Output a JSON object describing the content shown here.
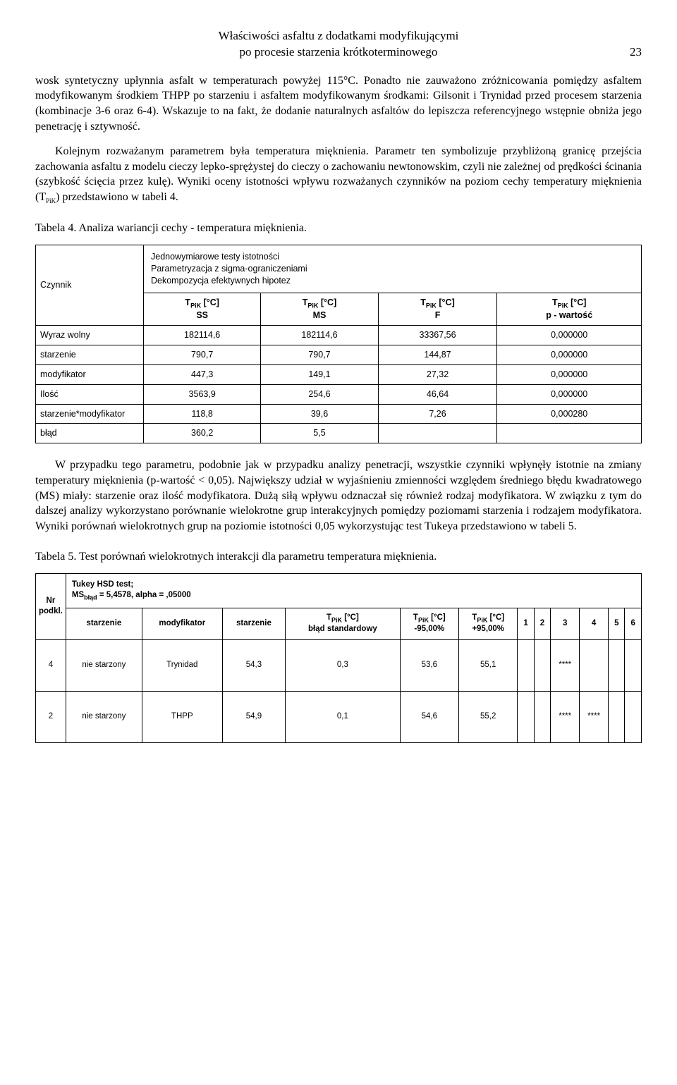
{
  "header": {
    "title_line1": "Właściwości asfaltu z dodatkami modyfikującymi",
    "title_line2": "po procesie starzenia krótkoterminowego",
    "page_number": "23"
  },
  "para1": "wosk syntetyczny upłynnia asfalt w temperaturach powyżej 115°C. Ponadto nie zauważono zróżnicowania pomiędzy asfaltem modyfikowanym środkiem THPP po starzeniu i asfaltem modyfikowanym środkami: Gilsonit i Trynidad przed procesem starzenia (kombinacje 3-6 oraz 6-4). Wskazuje to na fakt, że dodanie naturalnych asfaltów do lepiszcza referencyjnego wstępnie obniża jego penetrację i sztywność.",
  "para2_a": "Kolejnym rozważanym parametrem była temperatura mięknienia. Parametr ten symbolizuje przybliżoną granicę przejścia zachowania asfaltu z modelu cieczy lepko-sprężystej do cieczy o zachowaniu newtonowskim, czyli nie zależnej od prędkości ścinania (szybkość ścięcia przez kulę). Wyniki oceny istotności wpływu rozważanych czynników na poziom cechy temperatury mięknienia (T",
  "para2_sub": "PiK",
  "para2_b": ") przedstawiono w tabeli 4.",
  "table4": {
    "caption": "Tabela 4. Analiza wariancji cechy - temperatura mięknienia.",
    "corner": "Czynnik",
    "subtitle_l1": "Jednowymiarowe testy istotności",
    "subtitle_l2": "Parametryzacja z sigma-ograniczeniami",
    "subtitle_l3": "Dekompozycja efektywnych hipotez",
    "col_label_prefix": "T",
    "col_label_sub": "PiK",
    "col_label_unit": " [°C]",
    "col1_sub": "SS",
    "col2_sub": "MS",
    "col3_sub": "F",
    "col4_sub": "p - wartość",
    "rows": [
      {
        "name": "Wyraz wolny",
        "ss": "182114,6",
        "ms": "182114,6",
        "f": "33367,56",
        "p": "0,000000"
      },
      {
        "name": "starzenie",
        "ss": "790,7",
        "ms": "790,7",
        "f": "144,87",
        "p": "0,000000"
      },
      {
        "name": "modyfikator",
        "ss": "447,3",
        "ms": "149,1",
        "f": "27,32",
        "p": "0,000000"
      },
      {
        "name": "Ilość",
        "ss": "3563,9",
        "ms": "254,6",
        "f": "46,64",
        "p": "0,000000"
      },
      {
        "name": "starzenie*modyfikator",
        "ss": "118,8",
        "ms": "39,6",
        "f": "7,26",
        "p": "0,000280"
      },
      {
        "name": "błąd",
        "ss": "360,2",
        "ms": "5,5",
        "f": "",
        "p": ""
      }
    ]
  },
  "para3": "W przypadku tego parametru, podobnie jak w przypadku analizy penetracji, wszystkie czynniki wpłynęły istotnie na zmiany temperatury mięknienia (p-wartość < 0,05). Największy udział w wyjaśnieniu zmienności względem średniego błędu kwadratowego (MS) miały: starzenie oraz ilość modyfikatora. Dużą siłą wpływu odznaczał się również rodzaj modyfikatora. W związku z tym do dalszej analizy wykorzystano porównanie wielokrotne grup interakcyjnych pomiędzy poziomami starzenia i rodzajem modyfikatora. Wyniki porównań wielokrotnych grup na poziomie istotności 0,05 wykorzystując test Tukeya przedstawiono w tabeli 5.",
  "table5": {
    "caption": "Tabela 5. Test porównań wielokrotnych interakcji dla parametru temperatura mięknienia.",
    "tukey_l1": "Tukey HSD test;",
    "tukey_l2_a": "MS",
    "tukey_l2_sub": "błąd",
    "tukey_l2_b": " = 5,4578, alpha = ,05000",
    "rowhead": "Nr podkl.",
    "h_starzenie": "starzenie",
    "h_modyfikator": "modyfikator",
    "h_starzenie2": "starzenie",
    "h_blad_l1_pre": "T",
    "h_blad_l1_sub": "PiK",
    "h_blad_l1_unit": " [°C]",
    "h_blad_l2": "błąd standardowy",
    "h_m95_pre": "T",
    "h_m95_sub": "PiK",
    "h_m95_unit": " [°C]",
    "h_m95_l2": "-95,00%",
    "h_p95_pre": "T",
    "h_p95_sub": "PiK",
    "h_p95_unit": " [°C]",
    "h_p95_l2": "+95,00%",
    "h1": "1",
    "h2": "2",
    "h3": "3",
    "h4": "4",
    "h5": "5",
    "h6": "6",
    "rows": [
      {
        "nr": "4",
        "starz": "nie starzony",
        "mod": "Trynidad",
        "v": "54,3",
        "err": "0,3",
        "lo": "53,6",
        "hi": "55,1",
        "c1": "",
        "c2": "",
        "c3": "****",
        "c4": "",
        "c5": "",
        "c6": ""
      },
      {
        "nr": "2",
        "starz": "nie starzony",
        "mod": "THPP",
        "v": "54,9",
        "err": "0,1",
        "lo": "54,6",
        "hi": "55,2",
        "c1": "",
        "c2": "",
        "c3": "****",
        "c4": "****",
        "c5": "",
        "c6": ""
      }
    ]
  }
}
